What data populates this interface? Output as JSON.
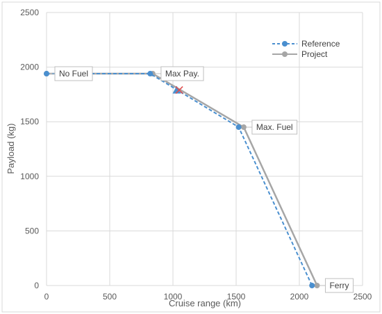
{
  "chart_data": {
    "type": "line",
    "title": "",
    "xlabel": "Cruise range (km)",
    "ylabel": "Payload (kg)",
    "xlim": [
      0,
      2500
    ],
    "ylim": [
      0,
      2500
    ],
    "xticks": [
      0,
      500,
      1000,
      1500,
      2000,
      2500
    ],
    "yticks": [
      0,
      500,
      1000,
      1500,
      2000,
      2500
    ],
    "grid": true,
    "legend": "top-right",
    "series": [
      {
        "name": "Reference",
        "color": "#4a8fcf",
        "style": "dashed",
        "x": [
          0,
          820,
          1520,
          2100
        ],
        "y": [
          1940,
          1940,
          1450,
          0
        ]
      },
      {
        "name": "Project",
        "color": "#a6a6a6",
        "style": "solid",
        "x": [
          0,
          840,
          1560,
          2140
        ],
        "y": [
          1940,
          1940,
          1450,
          0
        ]
      }
    ],
    "markers": [
      {
        "shape": "triangle",
        "color": "#4a8fcf",
        "x": 1030,
        "y": 1790
      },
      {
        "shape": "cross",
        "color": "#e05050",
        "x": 1050,
        "y": 1790
      }
    ],
    "annotations": [
      {
        "text": "No Fuel",
        "x": 0,
        "y": 1940
      },
      {
        "text": "Max Pay.",
        "x": 840,
        "y": 1940
      },
      {
        "text": "Max. Fuel",
        "x": 1560,
        "y": 1450
      },
      {
        "text": "Ferry",
        "x": 2140,
        "y": 0
      }
    ]
  }
}
